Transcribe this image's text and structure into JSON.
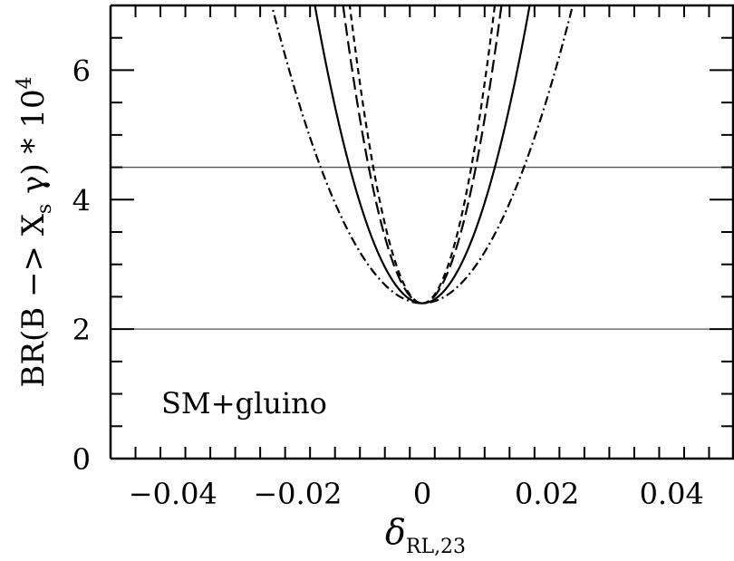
{
  "chart_data": {
    "type": "line",
    "xlabel": {
      "symbol": "δ",
      "subscript": "RL,23"
    },
    "ylabel": {
      "prefix": "BR(B −> X",
      "sub": "s",
      "middle": " γ) * 10",
      "sup": "4"
    },
    "xlim": [
      -0.05,
      0.05
    ],
    "ylim": [
      0,
      7
    ],
    "xticks": [
      -0.04,
      -0.02,
      0,
      0.02,
      0.04
    ],
    "xtick_labels": [
      "−0.04",
      "−0.02",
      "0",
      "0.02",
      "0.04"
    ],
    "yticks": [
      0,
      2,
      4,
      6
    ],
    "ytick_labels": [
      "0",
      "2",
      "4",
      "6"
    ],
    "annotation": "SM+gluino",
    "reference_lines_y": [
      2.0,
      4.5
    ],
    "series": [
      {
        "style": "solid",
        "dash": "",
        "min_x": 0,
        "min_y": 2.4,
        "curvature": 15500
      },
      {
        "style": "long-dashed",
        "dash": "14 6",
        "min_x": 0,
        "min_y": 2.4,
        "curvature": 28500
      },
      {
        "style": "short-dashed",
        "dash": "7 5",
        "min_x": 0,
        "min_y": 2.4,
        "curvature": 34000
      },
      {
        "style": "dash-dot",
        "dash": "10 4 2 4",
        "min_x": 0,
        "min_y": 2.4,
        "curvature": 7900
      }
    ]
  }
}
